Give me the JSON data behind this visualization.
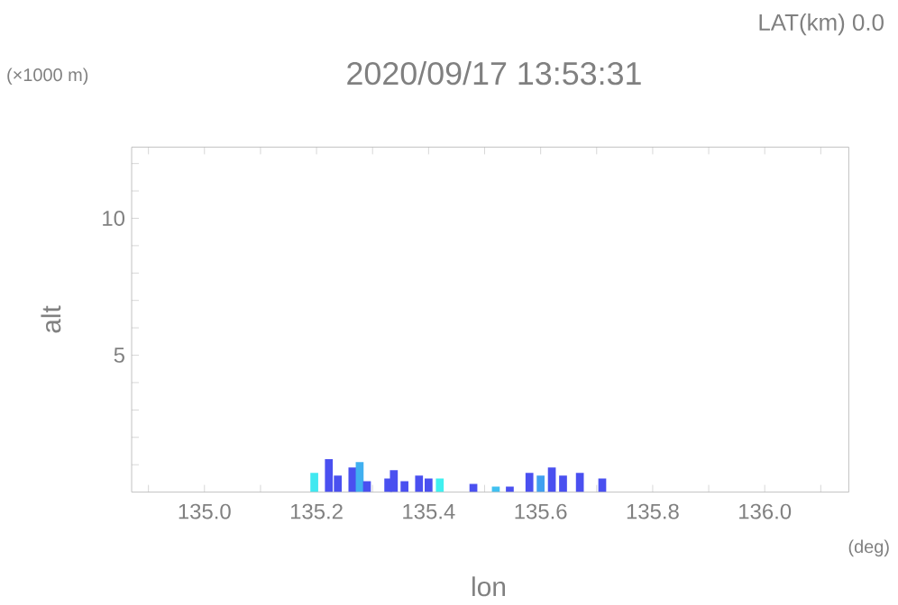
{
  "chart_data": {
    "type": "bar",
    "title": "2020/09/17 13:53:31",
    "subtitle": "LAT(km) 0.0",
    "xlabel": "lon",
    "ylabel": "alt",
    "annotations": [
      "(×1000 m)",
      "(deg)"
    ],
    "x": [
      135.196,
      135.222,
      135.238,
      135.264,
      135.277,
      135.29,
      135.328,
      135.338,
      135.357,
      135.383,
      135.4,
      135.42,
      135.48,
      135.52,
      135.545,
      135.58,
      135.6,
      135.62,
      135.64,
      135.67,
      135.71
    ],
    "values": [
      0.7,
      1.2,
      0.6,
      0.9,
      1.1,
      0.4,
      0.5,
      0.8,
      0.4,
      0.6,
      0.5,
      0.5,
      0.3,
      0.2,
      0.2,
      0.7,
      0.6,
      0.9,
      0.6,
      0.7,
      0.5
    ],
    "colors": [
      "#40e8f0",
      "#4a50f0",
      "#4a50f0",
      "#4a50f0",
      "#40b0f0",
      "#4a50f0",
      "#4a50f0",
      "#4a50f0",
      "#4a50f0",
      "#4a50f0",
      "#4a50f0",
      "#40f0f0",
      "#4a50f0",
      "#40c0f0",
      "#4a50f0",
      "#4a50f0",
      "#40a0f0",
      "#4a50f0",
      "#4a50f0",
      "#4a50f0",
      "#4a50f0"
    ],
    "xlim": [
      134.87,
      136.15
    ],
    "ylim": [
      0,
      12.6
    ],
    "xticks": [
      {
        "value": 134.9,
        "label": null
      },
      {
        "value": 135.0,
        "label": "135.0"
      },
      {
        "value": 135.1,
        "label": null
      },
      {
        "value": 135.2,
        "label": "135.2"
      },
      {
        "value": 135.3,
        "label": null
      },
      {
        "value": 135.4,
        "label": "135.4"
      },
      {
        "value": 135.5,
        "label": null
      },
      {
        "value": 135.6,
        "label": "135.6"
      },
      {
        "value": 135.7,
        "label": null
      },
      {
        "value": 135.8,
        "label": "135.8"
      },
      {
        "value": 135.9,
        "label": null
      },
      {
        "value": 136.0,
        "label": "136.0"
      },
      {
        "value": 136.1,
        "label": null
      }
    ],
    "yticks": [
      {
        "value": 1,
        "label": null
      },
      {
        "value": 2,
        "label": null
      },
      {
        "value": 3,
        "label": null
      },
      {
        "value": 4,
        "label": null
      },
      5,
      {
        "value": 6,
        "label": null
      },
      {
        "value": 7,
        "label": null
      },
      {
        "value": 8,
        "label": null
      },
      {
        "value": 9,
        "label": null
      },
      10,
      {
        "value": 11,
        "label": null
      },
      {
        "value": 12,
        "label": null
      }
    ],
    "grid": false
  }
}
